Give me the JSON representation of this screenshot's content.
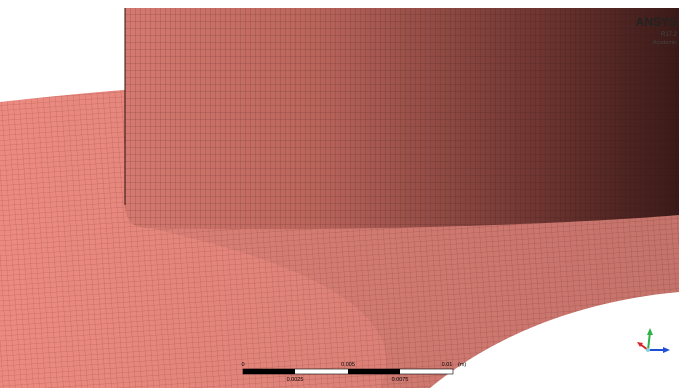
{
  "logo": {
    "title": "ANSYS",
    "version": "R17.2",
    "edition": "Academic"
  },
  "scale_bar": {
    "top_labels": [
      "0",
      "0.005",
      "0.01"
    ],
    "unit": "(m)",
    "bottom_labels": [
      "0.0025",
      "0.0075"
    ]
  }
}
